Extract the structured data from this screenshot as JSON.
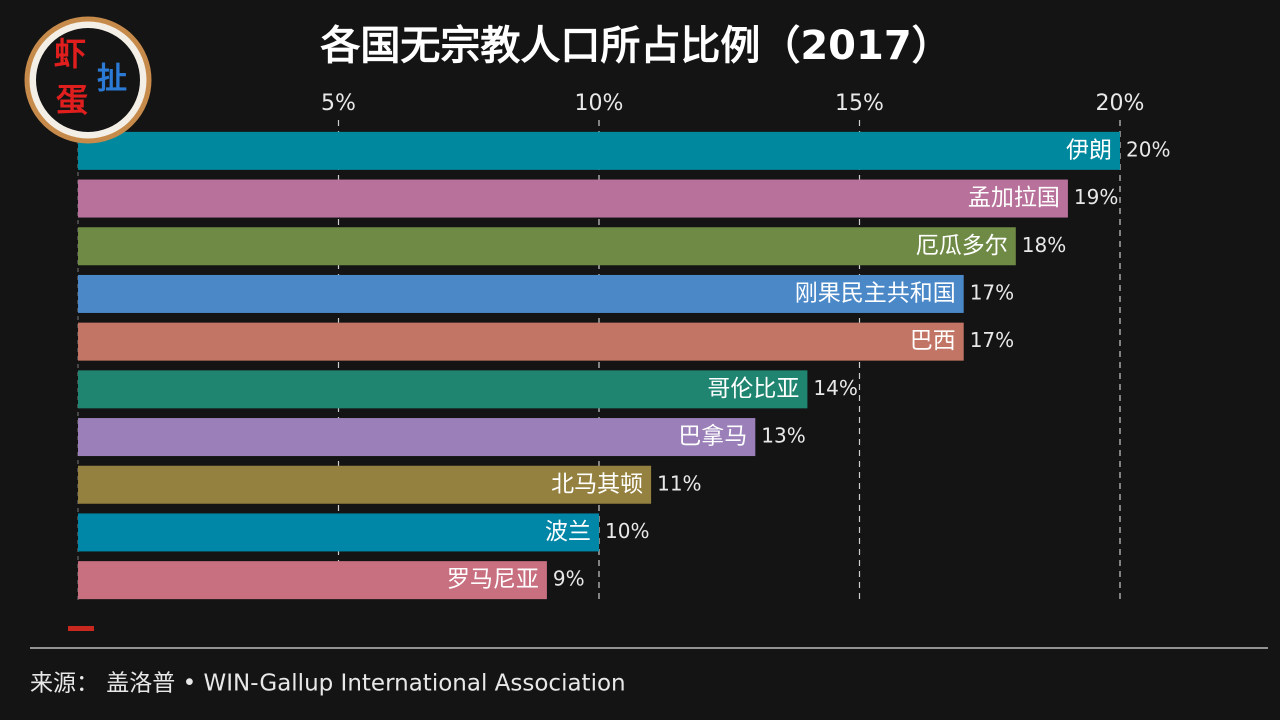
{
  "logo": [
    "虾",
    "扯",
    "蛋"
  ],
  "chart_data": {
    "type": "bar",
    "title": "各国无宗教人口所占比例（2017）",
    "categories": [
      "伊朗",
      "孟加拉国",
      "厄瓜多尔",
      "刚果民主共和国",
      "巴西",
      "哥伦比亚",
      "巴拿马",
      "北马其顿",
      "波兰",
      "罗马尼亚"
    ],
    "values": [
      20,
      19,
      18,
      17,
      17,
      14,
      13,
      11,
      10,
      9
    ],
    "value_labels": [
      "20%",
      "19%",
      "18%",
      "17%",
      "17%",
      "14%",
      "13%",
      "11%",
      "10%",
      "9%"
    ],
    "colors": [
      "#00889e",
      "#b8719a",
      "#6e8a45",
      "#4a88c8",
      "#c27564",
      "#1f8470",
      "#9a7fb8",
      "#94803f",
      "#0087a8",
      "#c86f80"
    ],
    "xlim": [
      0,
      20
    ],
    "xticks": [
      {
        "value": 5,
        "label": "5%"
      },
      {
        "value": 10,
        "label": "10%"
      },
      {
        "value": 15,
        "label": "15%"
      },
      {
        "value": 20,
        "label": "20%"
      }
    ],
    "grid": true,
    "source": "来源： 盖洛普 • WIN-Gallup International Association"
  }
}
